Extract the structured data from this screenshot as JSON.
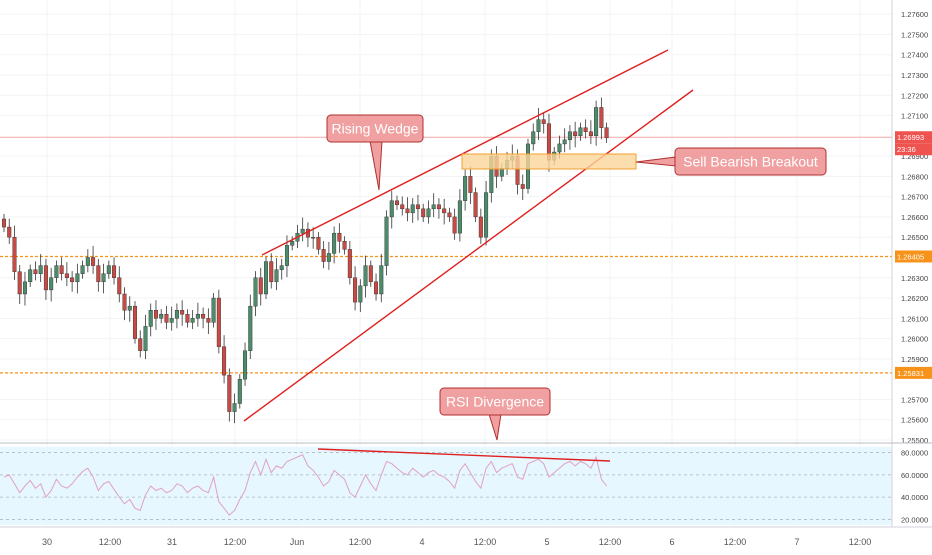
{
  "chart_data": [
    {
      "type": "candlestick",
      "instrument_price_scale": {
        "ylim": [
          1.255,
          1.2765
        ],
        "tick_labels": [
          "1.27600",
          "1.27500",
          "1.27400",
          "1.27300",
          "1.27200",
          "1.27100",
          "1.26900",
          "1.26800",
          "1.26700",
          "1.26600",
          "1.26500",
          "1.26300",
          "1.26200",
          "1.26100",
          "1.26000",
          "1.25900",
          "1.25700",
          "1.25600",
          "1.25500"
        ],
        "tick_values": [
          1.276,
          1.275,
          1.274,
          1.273,
          1.272,
          1.271,
          1.269,
          1.268,
          1.267,
          1.266,
          1.265,
          1.263,
          1.262,
          1.261,
          1.26,
          1.259,
          1.257,
          1.256,
          1.255
        ]
      },
      "badges": {
        "last_price": {
          "label": "1.26993",
          "value": 1.26993,
          "color": "#ef5350"
        },
        "countdown": {
          "label": "23:36",
          "color": "#ef5350"
        },
        "level_high": {
          "label": "1.26405",
          "value": 1.26405,
          "color": "#f7931a"
        },
        "level_low": {
          "label": "1.25831",
          "value": 1.25831,
          "color": "#f7931a"
        }
      },
      "time_axis_labels": [
        "30",
        "12:00",
        "31",
        "12:00",
        "Jun",
        "12:00",
        "4",
        "12:00",
        "5",
        "12:00",
        "6",
        "12:00",
        "7",
        "12:00"
      ],
      "annotations": {
        "wedge": "Rising Wedge",
        "breakout": "Sell Bearish Breakout",
        "divergence": "RSI Divergence"
      },
      "candles_close": [
        1.2655,
        1.265,
        1.2633,
        1.2622,
        1.2628,
        1.2634,
        1.2632,
        1.2636,
        1.2624,
        1.263,
        1.2636,
        1.2632,
        1.263,
        1.2628,
        1.2632,
        1.2636,
        1.264,
        1.2636,
        1.2628,
        1.2632,
        1.2636,
        1.263,
        1.2622,
        1.2614,
        1.2616,
        1.26,
        1.2594,
        1.2606,
        1.2614,
        1.261,
        1.2612,
        1.2608,
        1.261,
        1.2614,
        1.2612,
        1.2608,
        1.261,
        1.2612,
        1.261,
        1.2608,
        1.262,
        1.2596,
        1.2582,
        1.2564,
        1.2568,
        1.258,
        1.2594,
        1.2616,
        1.263,
        1.2622,
        1.2638,
        1.2628,
        1.2634,
        1.2636,
        1.2646,
        1.2648,
        1.2652,
        1.2654,
        1.265,
        1.265,
        1.2644,
        1.2638,
        1.2642,
        1.2652,
        1.2648,
        1.2644,
        1.263,
        1.2618,
        1.2626,
        1.2636,
        1.2628,
        1.2622,
        1.2636,
        1.266,
        1.2668,
        1.2666,
        1.2664,
        1.2662,
        1.2666,
        1.2664,
        1.266,
        1.2664,
        1.2666,
        1.2664,
        1.2662,
        1.266,
        1.2652,
        1.2668,
        1.268,
        1.2672,
        1.266,
        1.265,
        1.2672,
        1.269,
        1.268,
        1.2684,
        1.2688,
        1.269,
        1.2676,
        1.2674,
        1.2696,
        1.2702,
        1.2708,
        1.2706,
        1.2688,
        1.2692,
        1.2696,
        1.2698,
        1.2702,
        1.27,
        1.2704,
        1.2702,
        1.27,
        1.2714,
        1.2704,
        1.2699
      ],
      "rsi_data": {
        "ylim": [
          15,
          85
        ],
        "tick_labels": [
          "80.0000",
          "60.0000",
          "40.0000",
          "20.0000"
        ],
        "tick_values": [
          80,
          60,
          40,
          20
        ],
        "values": [
          58,
          60,
          52,
          44,
          50,
          55,
          48,
          52,
          40,
          46,
          56,
          50,
          48,
          52,
          58,
          63,
          66,
          58,
          46,
          52,
          54,
          47,
          40,
          34,
          38,
          30,
          28,
          42,
          50,
          46,
          48,
          44,
          46,
          52,
          50,
          44,
          48,
          50,
          46,
          44,
          58,
          36,
          30,
          24,
          28,
          38,
          46,
          62,
          72,
          60,
          74,
          62,
          68,
          66,
          72,
          74,
          76,
          78,
          68,
          64,
          58,
          50,
          54,
          64,
          60,
          56,
          44,
          40,
          50,
          60,
          52,
          46,
          60,
          72,
          70,
          66,
          62,
          60,
          66,
          62,
          58,
          62,
          64,
          60,
          58,
          54,
          48,
          64,
          70,
          62,
          54,
          48,
          66,
          72,
          62,
          66,
          68,
          70,
          58,
          56,
          70,
          72,
          74,
          70,
          58,
          62,
          66,
          70,
          72,
          68,
          72,
          70,
          66,
          76,
          56,
          50
        ]
      }
    }
  ]
}
